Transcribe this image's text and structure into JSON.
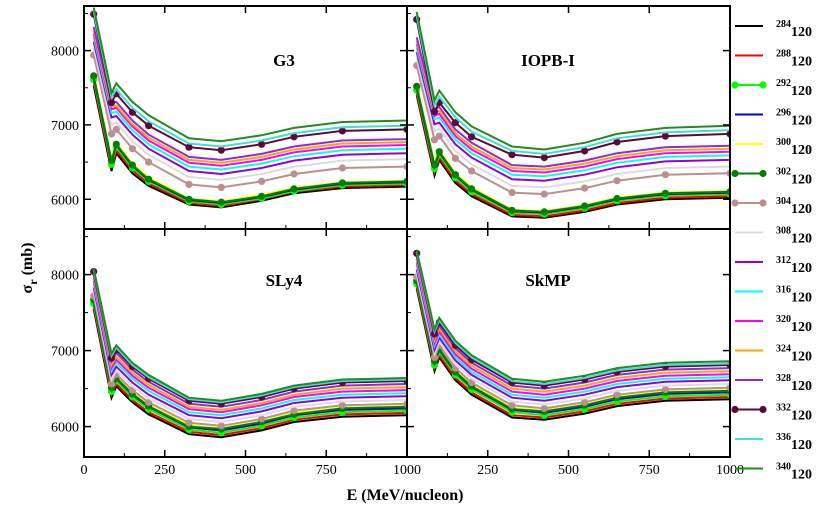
{
  "chart_data": {
    "type": "line",
    "xlabel": "E (MeV/nucleon)",
    "ylabel_main": "σ",
    "ylabel_sub": "r",
    "ylabel_unit": " (mb)",
    "xlim": [
      0,
      1000
    ],
    "ylim": [
      5600,
      8600
    ],
    "x_ticks": [
      0,
      250,
      500,
      750,
      1000
    ],
    "x_tick_labels": [
      "0",
      "250",
      "500",
      "750",
      "1000"
    ],
    "y_ticks": [
      6000,
      7000,
      8000
    ],
    "y_tick_labels": [
      "6000",
      "7000",
      "8000"
    ],
    "energies": [
      30,
      85,
      100,
      150,
      200,
      325,
      425,
      550,
      650,
      800,
      1000
    ],
    "marker_energies": [
      30,
      85,
      100,
      150,
      200,
      325,
      425,
      550,
      650,
      800,
      1000
    ],
    "legend": {
      "position": "right",
      "series": [
        {
          "sup": "284",
          "base": "120",
          "color": "#000000",
          "marker": false
        },
        {
          "sup": "288",
          "base": "120",
          "color": "#ff0000",
          "marker": false
        },
        {
          "sup": "292",
          "base": "120",
          "color": "#00ff00",
          "marker": true
        },
        {
          "sup": "296",
          "base": "120",
          "color": "#0000cc",
          "marker": false
        },
        {
          "sup": "300",
          "base": "120",
          "color": "#ffff00",
          "marker": false
        },
        {
          "sup": "302",
          "base": "120",
          "color": "#008000",
          "marker": true
        },
        {
          "sup": "304",
          "base": "120",
          "color": "#bc8f8f",
          "marker": true
        },
        {
          "sup": "308",
          "base": "120",
          "color": "#dcdcdc",
          "marker": false
        },
        {
          "sup": "312",
          "base": "120",
          "color": "#9400d3",
          "marker": false
        },
        {
          "sup": "316",
          "base": "120",
          "color": "#00ffff",
          "marker": false
        },
        {
          "sup": "320",
          "base": "120",
          "color": "#ff00ff",
          "marker": false
        },
        {
          "sup": "324",
          "base": "120",
          "color": "#ffa500",
          "marker": false
        },
        {
          "sup": "328",
          "base": "120",
          "color": "#8a2be2",
          "marker": false
        },
        {
          "sup": "332",
          "base": "120",
          "color": "#5c0a3c",
          "marker": true
        },
        {
          "sup": "336",
          "base": "120",
          "color": "#40e0d0",
          "marker": false
        },
        {
          "sup": "340",
          "base": "120",
          "color": "#228b22",
          "marker": false
        }
      ]
    },
    "panels": [
      {
        "title": "G3",
        "series": {
          "284": [
            7530,
            6380,
            6620,
            6350,
            6180,
            5930,
            5890,
            5980,
            6080,
            6150,
            6170
          ],
          "288": [
            7570,
            6420,
            6660,
            6390,
            6210,
            5950,
            5910,
            6000,
            6100,
            6170,
            6190
          ],
          "292": [
            7610,
            6470,
            6700,
            6420,
            6240,
            5970,
            5930,
            6010,
            6110,
            6190,
            6210
          ],
          "296": [
            7640,
            6500,
            6730,
            6450,
            6260,
            5990,
            5950,
            6030,
            6130,
            6210,
            6230
          ],
          "300": [
            7680,
            6540,
            6760,
            6480,
            6290,
            6010,
            5970,
            6060,
            6150,
            6230,
            6250
          ],
          "302": [
            7660,
            6520,
            6740,
            6460,
            6270,
            6000,
            5960,
            6040,
            6140,
            6220,
            6240
          ],
          "304": [
            7940,
            6880,
            6940,
            6680,
            6500,
            6200,
            6160,
            6240,
            6340,
            6420,
            6440
          ],
          "308": [
            8040,
            7000,
            7030,
            6780,
            6600,
            6300,
            6260,
            6340,
            6440,
            6520,
            6540
          ],
          "312": [
            8120,
            7100,
            7120,
            6870,
            6680,
            6380,
            6340,
            6420,
            6520,
            6600,
            6620
          ],
          "316": [
            8180,
            7160,
            7180,
            6930,
            6740,
            6440,
            6400,
            6480,
            6580,
            6660,
            6680
          ],
          "320": [
            8230,
            7210,
            7230,
            6980,
            6790,
            6490,
            6450,
            6530,
            6630,
            6710,
            6730
          ],
          "324": [
            8270,
            7250,
            7260,
            7010,
            6830,
            6530,
            6490,
            6570,
            6670,
            6750,
            6770
          ],
          "328": [
            8320,
            7300,
            7310,
            7060,
            6870,
            6570,
            6530,
            6610,
            6710,
            6790,
            6810
          ],
          "332": [
            8490,
            7300,
            7420,
            7170,
            6990,
            6700,
            6660,
            6740,
            6840,
            6920,
            6940
          ],
          "336": [
            8530,
            7370,
            7480,
            7230,
            7050,
            6750,
            6710,
            6790,
            6890,
            6970,
            6990
          ],
          "340": [
            8580,
            7430,
            7560,
            7310,
            7130,
            6820,
            6780,
            6860,
            6960,
            7040,
            7060
          ]
        }
      },
      {
        "title": "IOPB-I",
        "series": {
          "284": [
            7400,
            6320,
            6530,
            6220,
            6040,
            5770,
            5750,
            5830,
            5930,
            6000,
            6020
          ],
          "288": [
            7430,
            6360,
            6560,
            6250,
            6070,
            5790,
            5770,
            5850,
            5950,
            6020,
            6040
          ],
          "292": [
            7470,
            6410,
            6600,
            6290,
            6100,
            5820,
            5800,
            5880,
            5980,
            6050,
            6070
          ],
          "296": [
            7500,
            6440,
            6630,
            6320,
            6130,
            5840,
            5820,
            5900,
            6000,
            6070,
            6090
          ],
          "300": [
            7540,
            6480,
            6660,
            6350,
            6160,
            5860,
            5840,
            5920,
            6020,
            6090,
            6110
          ],
          "302": [
            7520,
            6460,
            6640,
            6330,
            6140,
            5850,
            5830,
            5910,
            6010,
            6080,
            6100
          ],
          "304": [
            7800,
            6800,
            6850,
            6550,
            6380,
            6090,
            6070,
            6150,
            6250,
            6330,
            6350
          ],
          "308": [
            7900,
            6920,
            6950,
            6650,
            6470,
            6180,
            6160,
            6240,
            6340,
            6420,
            6440
          ],
          "312": [
            7980,
            7010,
            7030,
            6740,
            6560,
            6270,
            6250,
            6330,
            6430,
            6510,
            6530
          ],
          "316": [
            8040,
            7080,
            7100,
            6800,
            6620,
            6330,
            6310,
            6390,
            6490,
            6570,
            6590
          ],
          "320": [
            8090,
            7120,
            7150,
            6850,
            6670,
            6380,
            6360,
            6440,
            6540,
            6620,
            6640
          ],
          "324": [
            8130,
            7160,
            7190,
            6890,
            6710,
            6420,
            6400,
            6480,
            6580,
            6660,
            6680
          ],
          "328": [
            8180,
            7210,
            7240,
            6940,
            6760,
            6460,
            6440,
            6520,
            6620,
            6700,
            6720
          ],
          "332": [
            8420,
            7180,
            7300,
            7030,
            6840,
            6600,
            6560,
            6650,
            6770,
            6850,
            6880
          ],
          "336": [
            8470,
            7260,
            7380,
            7100,
            6910,
            6650,
            6610,
            6700,
            6820,
            6900,
            6930
          ],
          "340": [
            8520,
            7330,
            7460,
            7170,
            6980,
            6710,
            6670,
            6760,
            6880,
            6960,
            6990
          ]
        }
      },
      {
        "title": "SLy4",
        "series": {
          "284": [
            7550,
            6380,
            6530,
            6320,
            6160,
            5900,
            5860,
            5950,
            6060,
            6130,
            6150
          ],
          "288": [
            7580,
            6420,
            6560,
            6350,
            6190,
            5930,
            5890,
            5980,
            6090,
            6160,
            6180
          ],
          "292": [
            7620,
            6460,
            6600,
            6390,
            6230,
            5960,
            5920,
            6010,
            6120,
            6190,
            6210
          ],
          "296": [
            7650,
            6490,
            6630,
            6420,
            6260,
            5990,
            5950,
            6040,
            6150,
            6220,
            6240
          ],
          "300": [
            7690,
            6530,
            6660,
            6450,
            6290,
            6020,
            5980,
            6070,
            6180,
            6250,
            6270
          ],
          "302": [
            7670,
            6510,
            6640,
            6430,
            6270,
            6000,
            5970,
            6060,
            6160,
            6240,
            6260
          ],
          "304": [
            7720,
            6560,
            6690,
            6480,
            6320,
            6050,
            6010,
            6100,
            6210,
            6280,
            6300
          ],
          "308": [
            7780,
            6620,
            6740,
            6530,
            6370,
            6100,
            6060,
            6150,
            6260,
            6330,
            6350
          ],
          "312": [
            7830,
            6680,
            6790,
            6580,
            6420,
            6150,
            6110,
            6200,
            6310,
            6380,
            6400
          ],
          "316": [
            7880,
            6730,
            6840,
            6630,
            6470,
            6190,
            6150,
            6240,
            6350,
            6420,
            6440
          ],
          "320": [
            7920,
            6770,
            6880,
            6670,
            6510,
            6230,
            6190,
            6280,
            6390,
            6460,
            6480
          ],
          "324": [
            7960,
            6810,
            6920,
            6710,
            6550,
            6260,
            6220,
            6310,
            6420,
            6500,
            6520
          ],
          "328": [
            8000,
            6860,
            6970,
            6750,
            6590,
            6300,
            6260,
            6350,
            6460,
            6540,
            6560
          ],
          "332": [
            8040,
            6900,
            7010,
            6790,
            6630,
            6340,
            6300,
            6390,
            6500,
            6580,
            6600
          ],
          "336": [
            8060,
            6930,
            7040,
            6810,
            6650,
            6360,
            6320,
            6410,
            6520,
            6600,
            6620
          ],
          "340": [
            8080,
            6960,
            7070,
            6840,
            6680,
            6380,
            6340,
            6430,
            6540,
            6620,
            6640
          ]
        }
      },
      {
        "title": "SkMP",
        "series": {
          "284": [
            7820,
            6730,
            6910,
            6610,
            6420,
            6120,
            6090,
            6170,
            6270,
            6340,
            6360
          ],
          "288": [
            7850,
            6770,
            6940,
            6640,
            6450,
            6150,
            6120,
            6200,
            6300,
            6370,
            6390
          ],
          "292": [
            7880,
            6810,
            6980,
            6680,
            6490,
            6190,
            6150,
            6230,
            6330,
            6400,
            6420
          ],
          "296": [
            7910,
            6840,
            7010,
            6710,
            6520,
            6220,
            6180,
            6260,
            6360,
            6430,
            6450
          ],
          "300": [
            7940,
            6880,
            7040,
            6740,
            6550,
            6250,
            6210,
            6290,
            6390,
            6460,
            6480
          ],
          "302": [
            7920,
            6860,
            7020,
            6720,
            6530,
            6230,
            6200,
            6280,
            6380,
            6450,
            6470
          ],
          "304": [
            7970,
            6910,
            7070,
            6770,
            6580,
            6280,
            6240,
            6320,
            6420,
            6490,
            6510
          ],
          "308": [
            8020,
            6960,
            7120,
            6820,
            6630,
            6330,
            6290,
            6370,
            6470,
            6540,
            6560
          ],
          "312": [
            8070,
            7010,
            7170,
            6870,
            6680,
            6380,
            6340,
            6420,
            6520,
            6590,
            6610
          ],
          "316": [
            8120,
            7060,
            7210,
            6910,
            6720,
            6420,
            6380,
            6460,
            6560,
            6630,
            6650
          ],
          "320": [
            8160,
            7100,
            7250,
            6950,
            6760,
            6460,
            6420,
            6500,
            6600,
            6670,
            6690
          ],
          "324": [
            8200,
            7140,
            7290,
            6990,
            6800,
            6500,
            6460,
            6540,
            6640,
            6710,
            6730
          ],
          "328": [
            8240,
            7180,
            7330,
            7030,
            6840,
            6540,
            6500,
            6580,
            6680,
            6750,
            6770
          ],
          "332": [
            8280,
            7220,
            7370,
            7070,
            6880,
            6580,
            6540,
            6620,
            6720,
            6790,
            6810
          ],
          "336": [
            8300,
            7250,
            7400,
            7100,
            6910,
            6600,
            6560,
            6640,
            6740,
            6810,
            6830
          ],
          "340": [
            8320,
            7280,
            7430,
            7130,
            6940,
            6630,
            6590,
            6670,
            6770,
            6840,
            6860
          ]
        }
      }
    ]
  }
}
